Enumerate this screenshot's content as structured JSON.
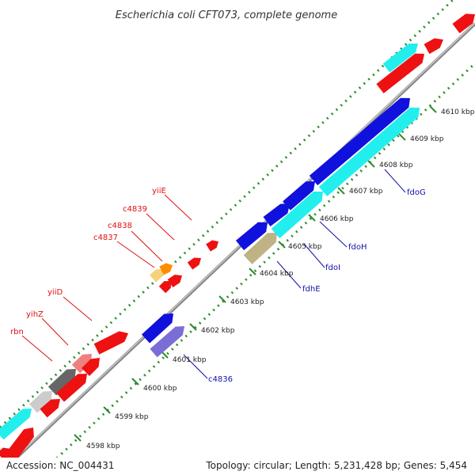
{
  "title": "Escherichia coli CFT073, complete genome",
  "footer": {
    "accession": "Accession: NC_004431",
    "topology": "Topology: circular; Length: 5,231,428 bp; Genes: 5,454"
  },
  "colors": {
    "backbone": "#888888",
    "dots": "#2e8b2e",
    "red": "#ee1111",
    "blue": "#1111dd",
    "cyan": "#22eeee",
    "khaki": "#bfb386",
    "orange": "#ff8c00",
    "pink": "#f08080",
    "lightgray": "#cccccc",
    "darkgray": "#666666",
    "slate": "#7a6ed6",
    "label_red": "#dd1111",
    "label_blue": "#1111aa"
  },
  "ticks": [
    "4598 kbp",
    "4599 kbp",
    "4600 kbp",
    "4601 kbp",
    "4602 kbp",
    "4603 kbp",
    "4604 kbp",
    "4605 kbp",
    "4606 kbp",
    "4607 kbp",
    "4608 kbp",
    "4609 kbp",
    "4610 kbp"
  ],
  "labels_top": [
    "rbn",
    "yihZ",
    "yiiD",
    "c4837",
    "c4838",
    "c4839",
    "yiiE"
  ],
  "labels_bottom": [
    "c4836",
    "fdhE",
    "fdoI",
    "fdoH",
    "fdoG"
  ]
}
